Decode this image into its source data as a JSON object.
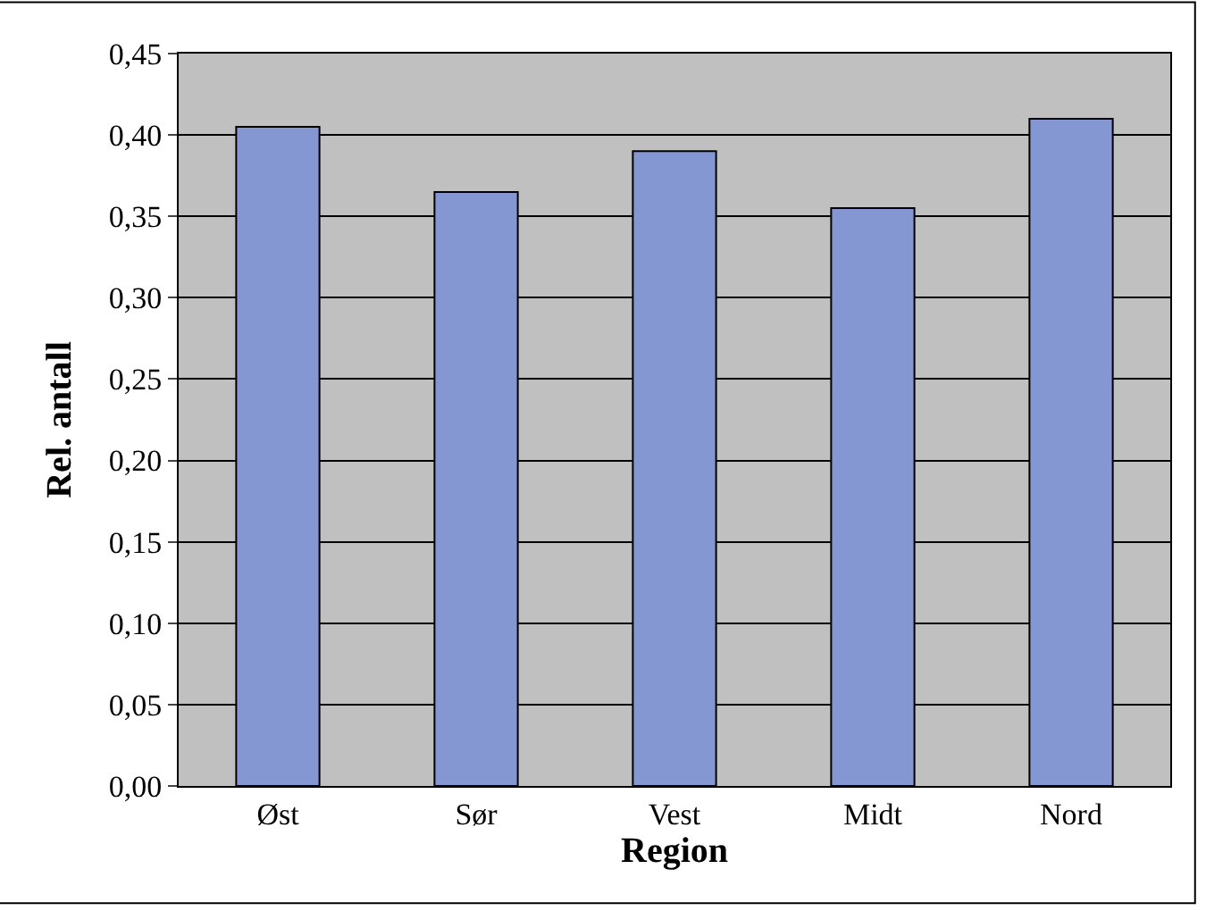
{
  "chart_data": {
    "type": "bar",
    "xlabel": "Region",
    "ylabel": "Rel. antall",
    "categories": [
      "Øst",
      "Sør",
      "Vest",
      "Midt",
      "Nord"
    ],
    "values": [
      0.405,
      0.365,
      0.39,
      0.355,
      0.41
    ],
    "color": "#8497d3",
    "ylim": [
      0,
      0.45
    ],
    "yticks": [
      {
        "value": 0,
        "label": "0,00"
      },
      {
        "value": 0.05,
        "label": "0,05"
      },
      {
        "value": 0.1,
        "label": "0,10"
      },
      {
        "value": 0.15,
        "label": "0,15"
      },
      {
        "value": 0.2,
        "label": "0,20"
      },
      {
        "value": 0.25,
        "label": "0,25"
      },
      {
        "value": 0.3,
        "label": "0,30"
      },
      {
        "value": 0.35,
        "label": "0,35"
      },
      {
        "value": 0.4,
        "label": "0,40"
      },
      {
        "value": 0.45,
        "label": "0,45"
      }
    ],
    "grid": "y"
  }
}
